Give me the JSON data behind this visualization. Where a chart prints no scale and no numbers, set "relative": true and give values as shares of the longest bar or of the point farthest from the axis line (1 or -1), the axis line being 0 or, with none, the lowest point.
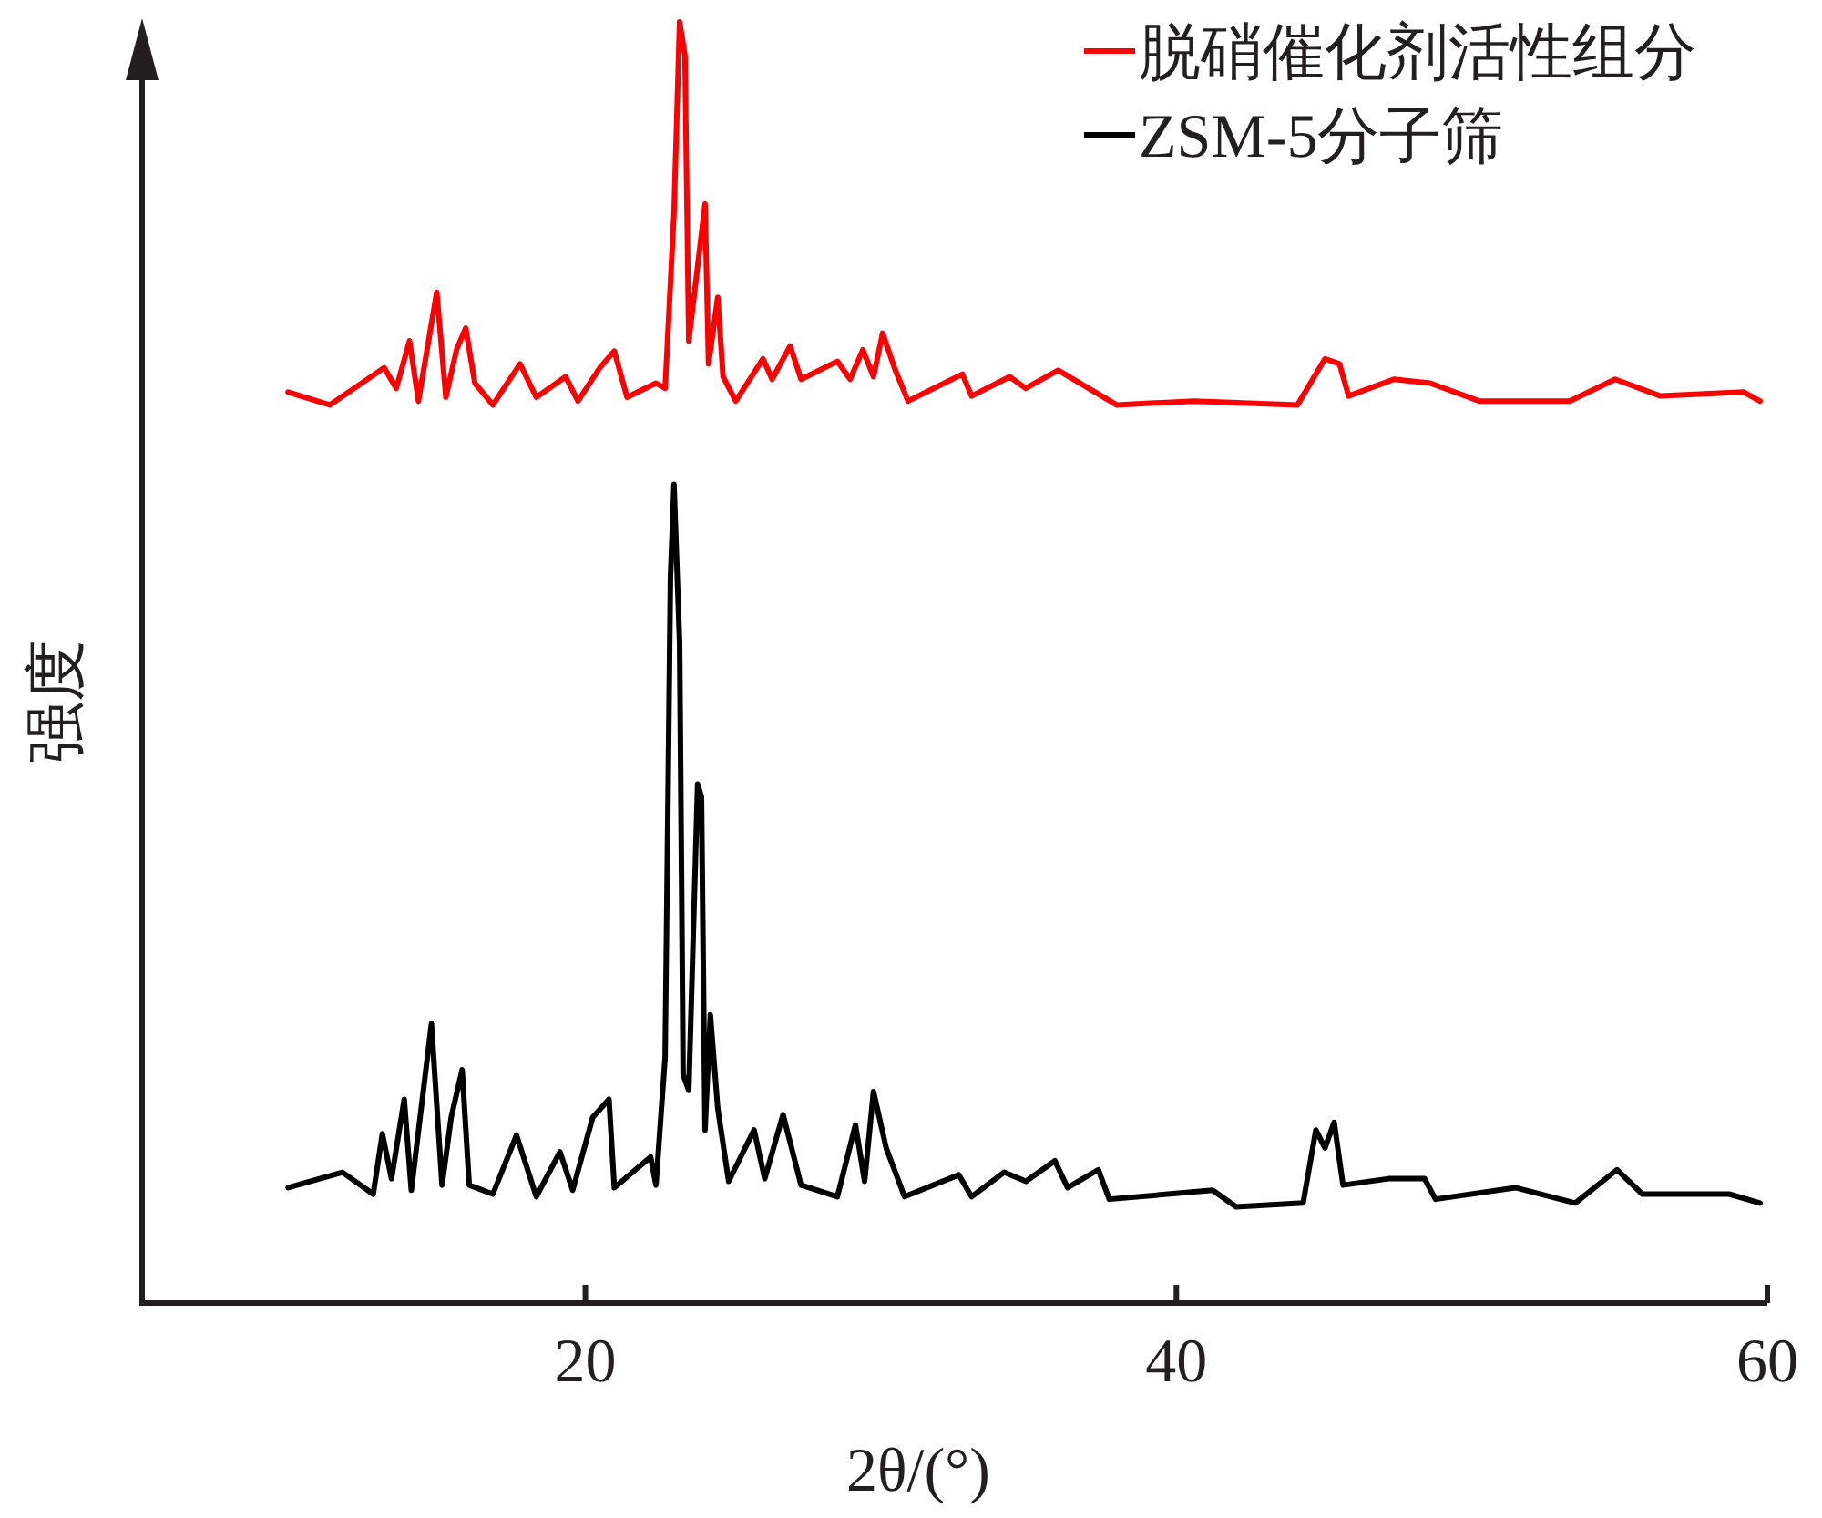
{
  "chart_data": {
    "type": "line",
    "relative": true,
    "xlabel": "2θ/(°)",
    "ylabel": "强度",
    "xlim": [
      5,
      60
    ],
    "xticks": [
      20,
      40,
      60
    ],
    "legend": "top right",
    "line_style": "solid",
    "series": [
      {
        "name": "脱硝催化剂活性组分",
        "color": "#ff0000",
        "x": [
          9.94,
          11.35,
          13.19,
          13.6,
          14.05,
          14.35,
          14.97,
          15.28,
          15.64,
          15.95,
          16.26,
          16.87,
          17.79,
          18.34,
          19.33,
          19.75,
          20.49,
          20.98,
          21.41,
          22.39,
          22.7,
          23.0,
          23.19,
          23.37,
          23.5,
          24.05,
          24.17,
          24.48,
          24.66,
          25.09,
          26.01,
          26.32,
          26.93,
          27.3,
          28.53,
          28.96,
          29.39,
          29.75,
          30.06,
          30.49,
          30.92,
          32.76,
          33.07,
          34.36,
          34.9,
          36.0,
          37.98,
          40.6,
          44.1,
          45.03,
          45.52,
          45.83,
          47.36,
          48.59,
          50.25,
          53.31,
          54.85,
          56.38,
          59.2,
          59.75
        ],
        "values": [
          0.711,
          0.701,
          0.73,
          0.714,
          0.751,
          0.704,
          0.789,
          0.707,
          0.744,
          0.761,
          0.718,
          0.701,
          0.733,
          0.707,
          0.723,
          0.704,
          0.73,
          0.743,
          0.707,
          0.718,
          0.714,
          0.851,
          1,
          0.974,
          0.751,
          0.858,
          0.733,
          0.785,
          0.723,
          0.704,
          0.737,
          0.721,
          0.747,
          0.721,
          0.735,
          0.721,
          0.744,
          0.723,
          0.757,
          0.728,
          0.704,
          0.725,
          0.708,
          0.723,
          0.714,
          0.728,
          0.701,
          0.704,
          0.701,
          0.737,
          0.733,
          0.708,
          0.721,
          0.718,
          0.704,
          0.704,
          0.721,
          0.708,
          0.711,
          0.704
        ]
      },
      {
        "name": "ZSM-5分子筛",
        "color": "#000000",
        "x": [
          9.94,
          11.78,
          12.82,
          13.13,
          13.44,
          13.87,
          14.11,
          14.79,
          15.15,
          15.46,
          15.83,
          16.07,
          16.87,
          17.67,
          18.34,
          19.14,
          19.57,
          20.25,
          20.8,
          20.98,
          22.21,
          22.39,
          22.7,
          22.88,
          23.0,
          23.19,
          23.31,
          23.5,
          23.8,
          23.93,
          24.05,
          24.23,
          24.48,
          24.85,
          25.71,
          26.07,
          26.69,
          27.3,
          28.53,
          29.14,
          29.45,
          29.75,
          30.18,
          30.8,
          32.64,
          33.07,
          34.17,
          34.91,
          35.89,
          36.32,
          37.36,
          37.73,
          41.23,
          42.02,
          44.29,
          44.72,
          45.03,
          45.34,
          45.64,
          47.18,
          48.4,
          48.77,
          51.47,
          53.5,
          54.91,
          55.77,
          58.71,
          59.75
        ],
        "values": [
          0.09,
          0.102,
          0.085,
          0.132,
          0.097,
          0.159,
          0.088,
          0.218,
          0.092,
          0.145,
          0.182,
          0.092,
          0.085,
          0.131,
          0.083,
          0.118,
          0.088,
          0.145,
          0.159,
          0.09,
          0.114,
          0.092,
          0.192,
          0.566,
          0.639,
          0.515,
          0.178,
          0.166,
          0.405,
          0.395,
          0.135,
          0.225,
          0.152,
          0.095,
          0.135,
          0.097,
          0.147,
          0.092,
          0.083,
          0.139,
          0.095,
          0.165,
          0.121,
          0.083,
          0.1,
          0.083,
          0.102,
          0.095,
          0.111,
          0.09,
          0.104,
          0.081,
          0.088,
          0.075,
          0.078,
          0.135,
          0.121,
          0.141,
          0.092,
          0.097,
          0.097,
          0.081,
          0.09,
          0.078,
          0.104,
          0.085,
          0.085,
          0.078
        ]
      }
    ]
  }
}
